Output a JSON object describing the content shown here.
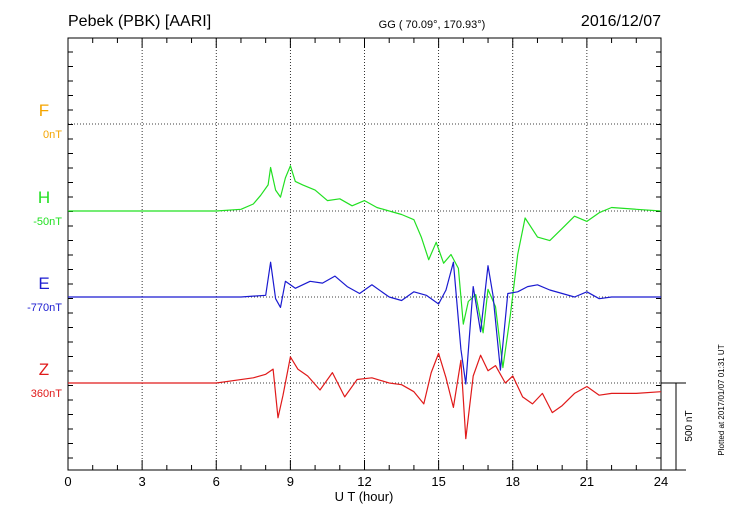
{
  "header": {
    "station": "Pebek (PBK)  [AARI]",
    "coords": "GG ( 70.09°, 170.93°)",
    "date": "2016/12/07"
  },
  "plotted_note": "Plotted at 2017/01/07 01:31 UT",
  "scale_label": "500 nT",
  "colors": {
    "F": "#f5a500",
    "H": "#22e022",
    "E": "#1a1ad0",
    "Z": "#e01a1a"
  },
  "chart_data": {
    "type": "line",
    "xlabel": "U T (hour)",
    "xlim": [
      0,
      24
    ],
    "xticks": [
      "0",
      "3",
      "6",
      "9",
      "12",
      "15",
      "18",
      "21",
      "24"
    ],
    "grid": true,
    "series": [
      {
        "name": "F",
        "offset_label": "0nT",
        "x": [],
        "y": []
      },
      {
        "name": "H",
        "offset_label": "-50nT",
        "x": [
          0,
          3,
          6,
          7,
          7.5,
          7.8,
          8.1,
          8.2,
          8.4,
          8.6,
          8.8,
          9.0,
          9.2,
          9.5,
          10,
          10.5,
          11,
          11.5,
          12,
          12.5,
          13,
          13.5,
          14,
          14.3,
          14.6,
          14.9,
          15.2,
          15.5,
          15.8,
          16.0,
          16.2,
          16.5,
          16.8,
          17.0,
          17.3,
          17.6,
          17.9,
          18.2,
          18.5,
          19,
          19.5,
          20,
          20.5,
          21,
          21.5,
          22,
          23,
          24
        ],
        "y": [
          0,
          0,
          0,
          10,
          40,
          90,
          150,
          250,
          120,
          80,
          190,
          260,
          170,
          150,
          120,
          60,
          70,
          30,
          60,
          20,
          0,
          -20,
          -50,
          -150,
          -280,
          -180,
          -300,
          -250,
          -330,
          -650,
          -520,
          -480,
          -700,
          -450,
          -550,
          -900,
          -600,
          -250,
          -40,
          -150,
          -170,
          -100,
          -30,
          -60,
          -10,
          20,
          10,
          0
        ]
      },
      {
        "name": "E",
        "offset_label": "-770nT",
        "x": [
          0,
          3,
          6,
          7,
          8,
          8.2,
          8.4,
          8.6,
          8.8,
          9.2,
          9.8,
          10.3,
          10.8,
          11.3,
          11.8,
          12.3,
          13,
          13.5,
          14,
          14.5,
          15.0,
          15.3,
          15.6,
          15.9,
          16.1,
          16.4,
          16.7,
          17.0,
          17.2,
          17.5,
          17.8,
          18.2,
          18.6,
          19,
          19.5,
          20,
          20.5,
          21,
          21.5,
          22,
          23,
          24
        ],
        "y": [
          0,
          0,
          0,
          0,
          10,
          200,
          -10,
          -60,
          90,
          50,
          90,
          80,
          120,
          60,
          20,
          70,
          0,
          -20,
          30,
          10,
          -40,
          40,
          200,
          -300,
          -500,
          60,
          -200,
          180,
          10,
          -420,
          20,
          30,
          60,
          70,
          40,
          20,
          0,
          30,
          -10,
          0,
          0,
          0
        ]
      },
      {
        "name": "Z",
        "offset_label": "360nT",
        "x": [
          0,
          3,
          6,
          7.5,
          8,
          8.3,
          8.5,
          8.7,
          9.0,
          9.3,
          9.7,
          10.2,
          10.7,
          11.2,
          11.7,
          12.3,
          13,
          13.5,
          14,
          14.4,
          14.7,
          15,
          15.3,
          15.6,
          15.9,
          16.1,
          16.4,
          16.7,
          17.0,
          17.3,
          17.7,
          18.0,
          18.4,
          18.8,
          19.2,
          19.6,
          20,
          20.5,
          21,
          21.5,
          22,
          23,
          24
        ],
        "y": [
          0,
          0,
          0,
          30,
          50,
          80,
          -200,
          -70,
          150,
          80,
          40,
          -40,
          60,
          -80,
          20,
          30,
          0,
          -10,
          -50,
          -120,
          60,
          170,
          30,
          -140,
          130,
          -320,
          40,
          160,
          70,
          100,
          0,
          40,
          -80,
          -120,
          -60,
          -170,
          -130,
          -60,
          -20,
          -70,
          -60,
          -60,
          -50
        ]
      }
    ]
  }
}
